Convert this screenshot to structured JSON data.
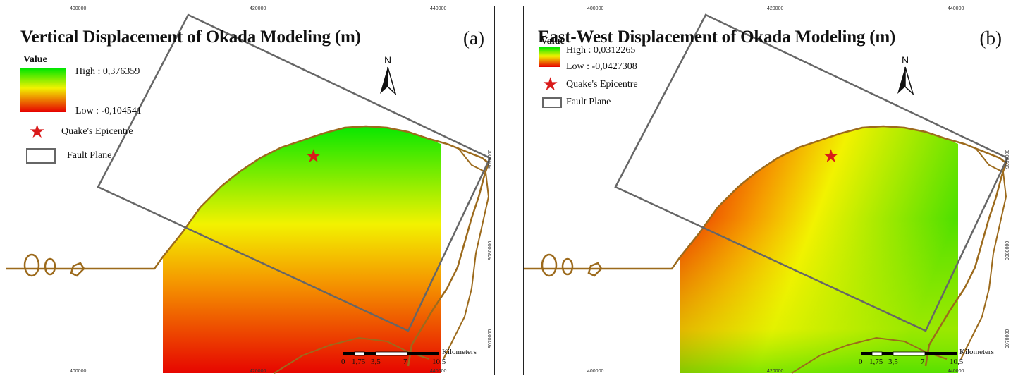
{
  "panels": [
    {
      "title": "Vertical Displacement of Okada Modeling (m)",
      "label": "(a)",
      "legend": {
        "heading": "Value",
        "high": "High : 0,376359",
        "low": "Low : -0,104541",
        "epicentre": "Quake's Epicentre",
        "fault": "Fault Plane"
      },
      "north": "N",
      "x_ticks_top": [
        "400000",
        "420000",
        "440000"
      ],
      "x_ticks_bottom": [
        "400000",
        "420000",
        "440000"
      ],
      "y_ticks": [
        "9090000",
        "9080000",
        "9070000"
      ],
      "scale": {
        "labels": [
          "0",
          "1,75",
          "3,5",
          "7",
          "10,5"
        ],
        "unit": "Kilometers"
      }
    },
    {
      "title": "East-West Displacement of Okada Modeling (m)",
      "label": "(b)",
      "legend": {
        "heading": "Value",
        "high": "High : 0,0312265",
        "low": "Low : -0,0427308",
        "epicentre": "Quake's Epicentre",
        "fault": "Fault Plane"
      },
      "north": "N",
      "x_ticks_top": [
        "400000",
        "420000",
        "440000"
      ],
      "x_ticks_bottom": [
        "400000",
        "420000",
        "440000"
      ],
      "y_ticks": [
        "9090000",
        "9080000",
        "9070000"
      ],
      "scale": {
        "labels": [
          "0",
          "1,75",
          "3,5",
          "7",
          "10,5"
        ],
        "unit": "Kilometers"
      }
    }
  ],
  "colors": {
    "high": "#00e600",
    "mid": "#f2f200",
    "low": "#e60000",
    "coastline": "#9c6a1c",
    "fault_plane": "#666666",
    "epicentre": "#d91a1a"
  }
}
